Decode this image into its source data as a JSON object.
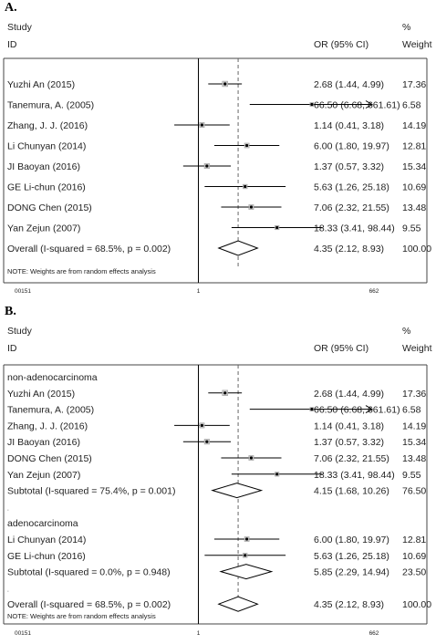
{
  "chart_data": [
    {
      "type": "forest",
      "panel_label": "A.",
      "headers": {
        "study": "Study",
        "id": "ID",
        "or": "OR (95% CI)",
        "pct": "%",
        "weight": "Weight"
      },
      "x_ticks": [
        "00151",
        "1",
        "662"
      ],
      "note": "NOTE: Weights are from random effects analysis",
      "rows": [
        {
          "kind": "study",
          "label": "Yuzhi An (2015)",
          "or": 2.68,
          "lo": 1.44,
          "hi": 4.99,
          "or_text": "2.68 (1.44, 4.99)",
          "weight": "17.36"
        },
        {
          "kind": "study",
          "label": "Tanemura, A. (2005)",
          "or": 66.5,
          "lo": 6.68,
          "hi": 661.61,
          "or_text": "66.50 (6.68, 661.61)",
          "weight": "6.58"
        },
        {
          "kind": "study",
          "label": "Zhang, J. J. (2016)",
          "or": 1.14,
          "lo": 0.41,
          "hi": 3.18,
          "or_text": "1.14 (0.41, 3.18)",
          "weight": "14.19"
        },
        {
          "kind": "study",
          "label": "Li Chunyan (2014)",
          "or": 6.0,
          "lo": 1.8,
          "hi": 19.97,
          "or_text": "6.00 (1.80, 19.97)",
          "weight": "12.81"
        },
        {
          "kind": "study",
          "label": "JI Baoyan (2016)",
          "or": 1.37,
          "lo": 0.57,
          "hi": 3.32,
          "or_text": "1.37 (0.57, 3.32)",
          "weight": "15.34"
        },
        {
          "kind": "study",
          "label": "GE Li-chun (2016)",
          "or": 5.63,
          "lo": 1.26,
          "hi": 25.18,
          "or_text": "5.63 (1.26, 25.18)",
          "weight": "10.69"
        },
        {
          "kind": "study",
          "label": "DONG Chen (2015)",
          "or": 7.06,
          "lo": 2.32,
          "hi": 21.55,
          "or_text": "7.06 (2.32, 21.55)",
          "weight": "13.48"
        },
        {
          "kind": "study",
          "label": "Yan Zejun (2007)",
          "or": 18.33,
          "lo": 3.41,
          "hi": 98.44,
          "or_text": "18.33 (3.41, 98.44)",
          "weight": "9.55"
        },
        {
          "kind": "pooled",
          "label": "Overall  (I-squared = 68.5%, p = 0.002)",
          "or": 4.35,
          "lo": 2.12,
          "hi": 8.93,
          "or_text": "4.35 (2.12, 8.93)",
          "weight": "100.00"
        }
      ]
    },
    {
      "type": "forest",
      "panel_label": "B.",
      "headers": {
        "study": "Study",
        "id": "ID",
        "or": "OR (95% CI)",
        "pct": "%",
        "weight": "Weight"
      },
      "x_ticks": [
        "00151",
        "1",
        "662"
      ],
      "note": "NOTE: Weights are from random effects analysis",
      "rows": [
        {
          "kind": "group",
          "label": "non-adenocarcinoma"
        },
        {
          "kind": "study",
          "label": "Yuzhi An (2015)",
          "or": 2.68,
          "lo": 1.44,
          "hi": 4.99,
          "or_text": "2.68 (1.44, 4.99)",
          "weight": "17.36"
        },
        {
          "kind": "study",
          "label": "Tanemura, A. (2005)",
          "or": 66.5,
          "lo": 6.68,
          "hi": 661.61,
          "or_text": "66.50 (6.68, 661.61)",
          "weight": "6.58"
        },
        {
          "kind": "study",
          "label": "Zhang, J. J. (2016)",
          "or": 1.14,
          "lo": 0.41,
          "hi": 3.18,
          "or_text": "1.14 (0.41, 3.18)",
          "weight": "14.19"
        },
        {
          "kind": "study",
          "label": "JI Baoyan (2016)",
          "or": 1.37,
          "lo": 0.57,
          "hi": 3.32,
          "or_text": "1.37 (0.57, 3.32)",
          "weight": "15.34"
        },
        {
          "kind": "study",
          "label": "DONG Chen (2015)",
          "or": 7.06,
          "lo": 2.32,
          "hi": 21.55,
          "or_text": "7.06 (2.32, 21.55)",
          "weight": "13.48"
        },
        {
          "kind": "study",
          "label": "Yan Zejun (2007)",
          "or": 18.33,
          "lo": 3.41,
          "hi": 98.44,
          "or_text": "18.33 (3.41, 98.44)",
          "weight": "9.55"
        },
        {
          "kind": "pooled",
          "label": "Subtotal  (I-squared = 75.4%, p = 0.001)",
          "or": 4.15,
          "lo": 1.68,
          "hi": 10.26,
          "or_text": "4.15 (1.68, 10.26)",
          "weight": "76.50"
        },
        {
          "kind": "spacer",
          "label": "."
        },
        {
          "kind": "group",
          "label": "adenocarcinoma"
        },
        {
          "kind": "study",
          "label": "Li Chunyan (2014)",
          "or": 6.0,
          "lo": 1.8,
          "hi": 19.97,
          "or_text": "6.00 (1.80, 19.97)",
          "weight": "12.81"
        },
        {
          "kind": "study",
          "label": "GE Li-chun (2016)",
          "or": 5.63,
          "lo": 1.26,
          "hi": 25.18,
          "or_text": "5.63 (1.26, 25.18)",
          "weight": "10.69"
        },
        {
          "kind": "pooled",
          "label": "Subtotal  (I-squared = 0.0%, p = 0.948)",
          "or": 5.85,
          "lo": 2.29,
          "hi": 14.94,
          "or_text": "5.85 (2.29, 14.94)",
          "weight": "23.50"
        },
        {
          "kind": "spacer",
          "label": "."
        },
        {
          "kind": "pooled",
          "label": "Overall  (I-squared = 68.5%, p = 0.002)",
          "or": 4.35,
          "lo": 2.12,
          "hi": 8.93,
          "or_text": "4.35 (2.12, 8.93)",
          "weight": "100.00"
        }
      ]
    }
  ]
}
